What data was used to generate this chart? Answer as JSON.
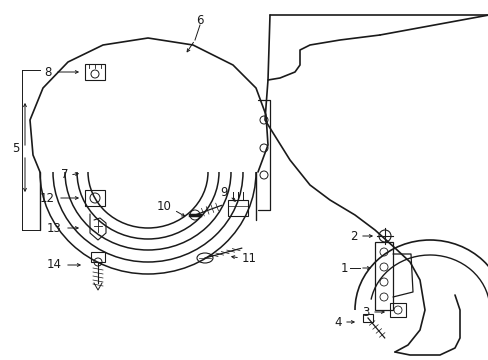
{
  "background_color": "#ffffff",
  "line_color": "#1a1a1a",
  "figsize": [
    4.89,
    3.6
  ],
  "dpi": 100,
  "lw": 1.0
}
